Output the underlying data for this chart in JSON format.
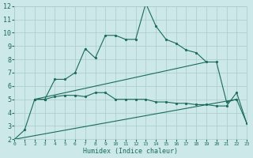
{
  "xlabel": "Humidex (Indice chaleur)",
  "bg_color": "#cce8e8",
  "grid_color": "#aacccc",
  "line_color": "#1a6b5a",
  "xlim": [
    0,
    23
  ],
  "ylim": [
    2,
    12
  ],
  "yticks": [
    2,
    3,
    4,
    5,
    6,
    7,
    8,
    9,
    10,
    11,
    12
  ],
  "xticks": [
    0,
    1,
    2,
    3,
    4,
    5,
    6,
    7,
    8,
    9,
    10,
    11,
    12,
    13,
    14,
    15,
    16,
    17,
    18,
    19,
    20,
    21,
    22,
    23
  ],
  "line1_x": [
    1,
    2,
    3,
    4,
    5,
    6,
    7,
    8,
    9,
    10,
    11,
    12,
    13,
    14,
    15,
    16,
    17,
    18,
    19,
    20,
    21,
    22
  ],
  "line1_y": [
    2.7,
    5.0,
    5.0,
    6.5,
    6.5,
    7.0,
    8.8,
    8.1,
    9.8,
    9.8,
    9.5,
    9.5,
    12.2,
    10.5,
    9.5,
    9.2,
    8.7,
    8.5,
    7.8,
    7.8,
    4.8,
    5.0
  ],
  "line2_x": [
    2,
    3,
    4,
    5,
    6,
    7,
    8,
    9,
    10,
    11,
    12,
    13,
    14,
    15,
    16,
    17,
    18,
    19,
    20,
    21,
    22,
    23
  ],
  "line2_y": [
    5.0,
    5.0,
    5.2,
    5.3,
    5.3,
    5.2,
    5.5,
    5.5,
    5.0,
    5.0,
    5.0,
    5.0,
    4.8,
    4.8,
    4.7,
    4.7,
    4.6,
    4.6,
    4.5,
    4.5,
    5.5,
    3.2
  ],
  "line3_x": [
    0,
    1
  ],
  "line3_y": [
    2.0,
    2.7
  ],
  "line4_x": [
    2,
    19
  ],
  "line4_y": [
    5.0,
    7.8
  ],
  "line5_x": [
    0,
    22,
    23
  ],
  "line5_y": [
    2.0,
    5.0,
    3.2
  ]
}
